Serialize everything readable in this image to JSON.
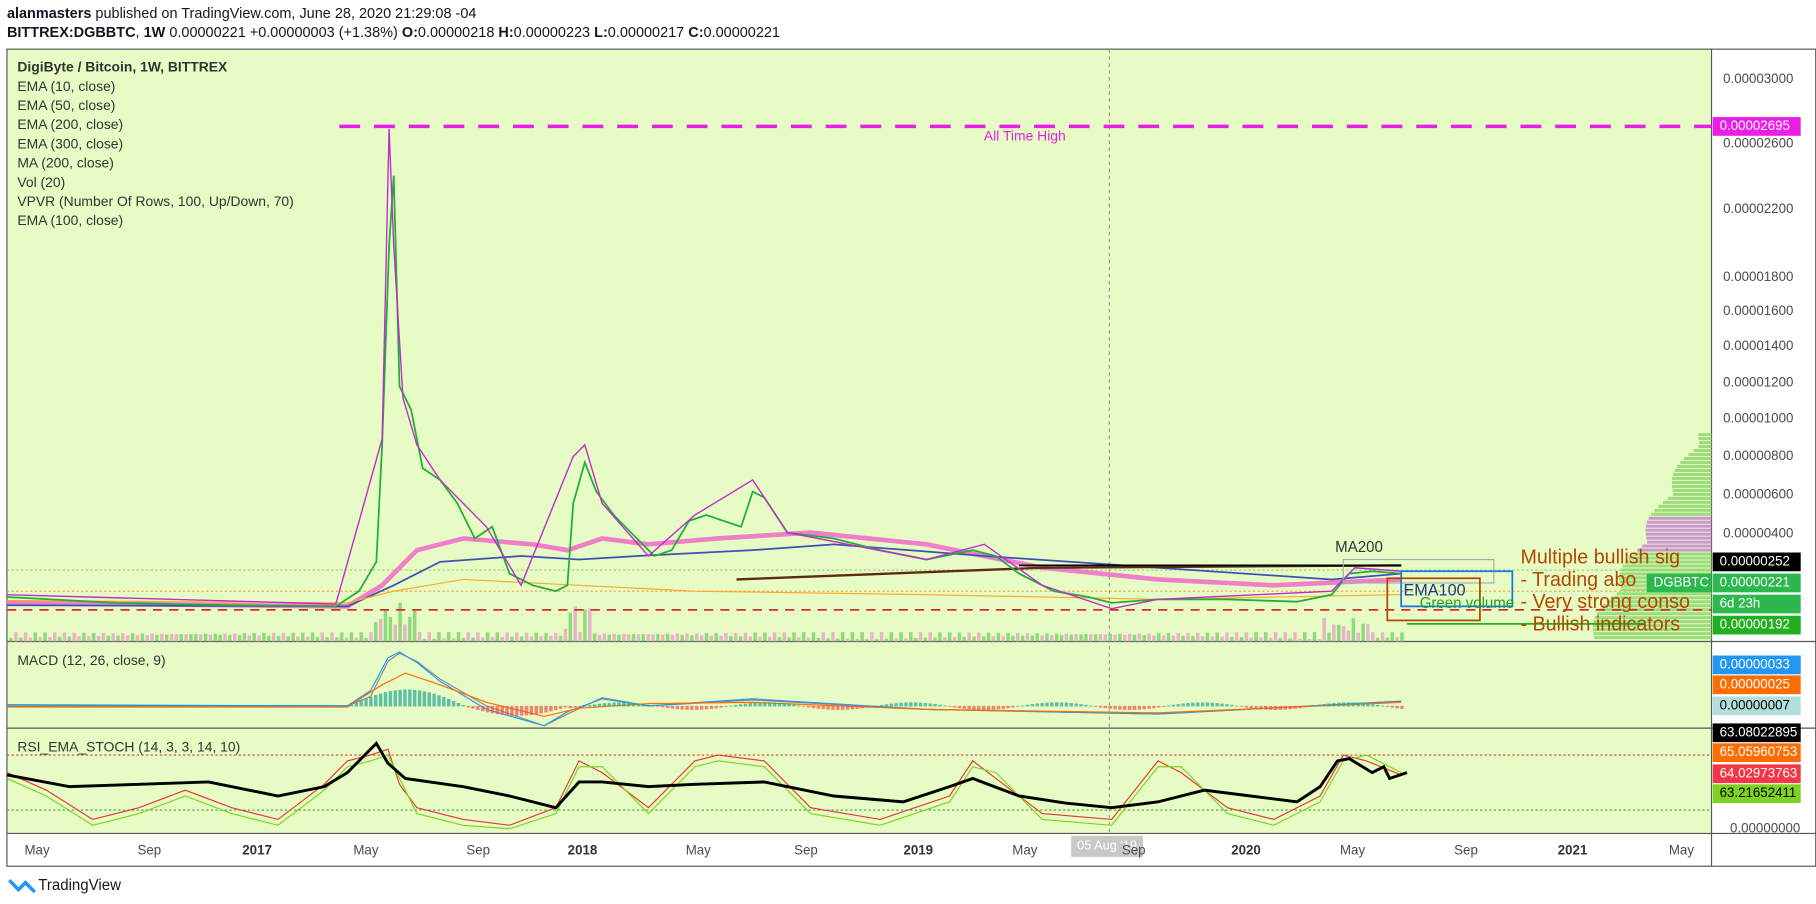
{
  "header": {
    "publisher": "alanmasters",
    "published": "published on TradingView.com, June 28, 2020 21:29:08 -04",
    "symbol": "BITTREX:DGBBTC",
    "interval": "1W",
    "price": "0.00000221",
    "change": "+0.00000003 (+1.38%)",
    "ohlc": [
      {
        "label": "O:",
        "value": "0.00000218"
      },
      {
        "label": "H:",
        "value": "0.00000223"
      },
      {
        "label": "L:",
        "value": "0.00000217"
      },
      {
        "label": "C:",
        "value": "0.00000221"
      }
    ]
  },
  "legend": [
    "DigiByte / Bitcoin, 1W, BITTREX",
    "EMA (10, close)",
    "EMA (50, close)",
    "EMA (200, close)",
    "EMA (300, close)",
    "MA (200, close)",
    "Vol (20)",
    "VPVR (Number Of Rows, 100, Up/Down, 70)",
    "EMA (100, close)"
  ],
  "price_axis": [
    "0.00003000",
    "0.00002600",
    "0.00002200",
    "0.00001800",
    "0.00001600",
    "0.00001400",
    "0.00001200",
    "0.00001000",
    "0.00000800",
    "0.00000600",
    "0.00000400"
  ],
  "badges": [
    {
      "text": "0.00002695",
      "color": "#e91ee9"
    },
    {
      "text": "0.00000252",
      "color": "#000000"
    },
    {
      "text": "DGBBTC",
      "color": "#2db84d"
    },
    {
      "text": "0.00000221",
      "color": "#2db84d"
    },
    {
      "text": "6d 23h",
      "color": "#2db84d"
    },
    {
      "text": "0.00000192",
      "color": "#22b022"
    }
  ],
  "macd": {
    "title": "MACD (12, 26, close, 9)",
    "badges": [
      {
        "text": "0.00000033",
        "color": "#2196f3"
      },
      {
        "text": "0.00000025",
        "color": "#ff6d00"
      },
      {
        "text": "0.00000007",
        "color": "#b2dfdb"
      }
    ]
  },
  "rsi": {
    "title": "RSI_EMA_STOCH (14, 3, 3, 14, 10)",
    "badges": [
      {
        "text": "63.08022895",
        "color": "#000000"
      },
      {
        "text": "65.05960753",
        "color": "#ff6d00"
      },
      {
        "text": "64.02973763",
        "color": "#f23645"
      },
      {
        "text": "63.21652411",
        "color": "#7ed321"
      }
    ],
    "zero": "0.00000000"
  },
  "time_axis": [
    "May",
    "Sep",
    "2017",
    "May",
    "Sep",
    "2018",
    "May",
    "Sep",
    "2019",
    "May",
    "Sep",
    "2020",
    "May",
    "Sep",
    "2021",
    "May"
  ],
  "crosshair_date": "05 Aug '19",
  "annotations": {
    "ath": "All Time High",
    "ma200": "MA200",
    "signals": "Multiple bullish sig",
    "trading": "- Trading abo",
    "consolidation": "- Very strong conso",
    "bullish": "- Bullish indicators",
    "ema100": "EMA100",
    "volume": "Green volume"
  },
  "footer": "TradingView"
}
